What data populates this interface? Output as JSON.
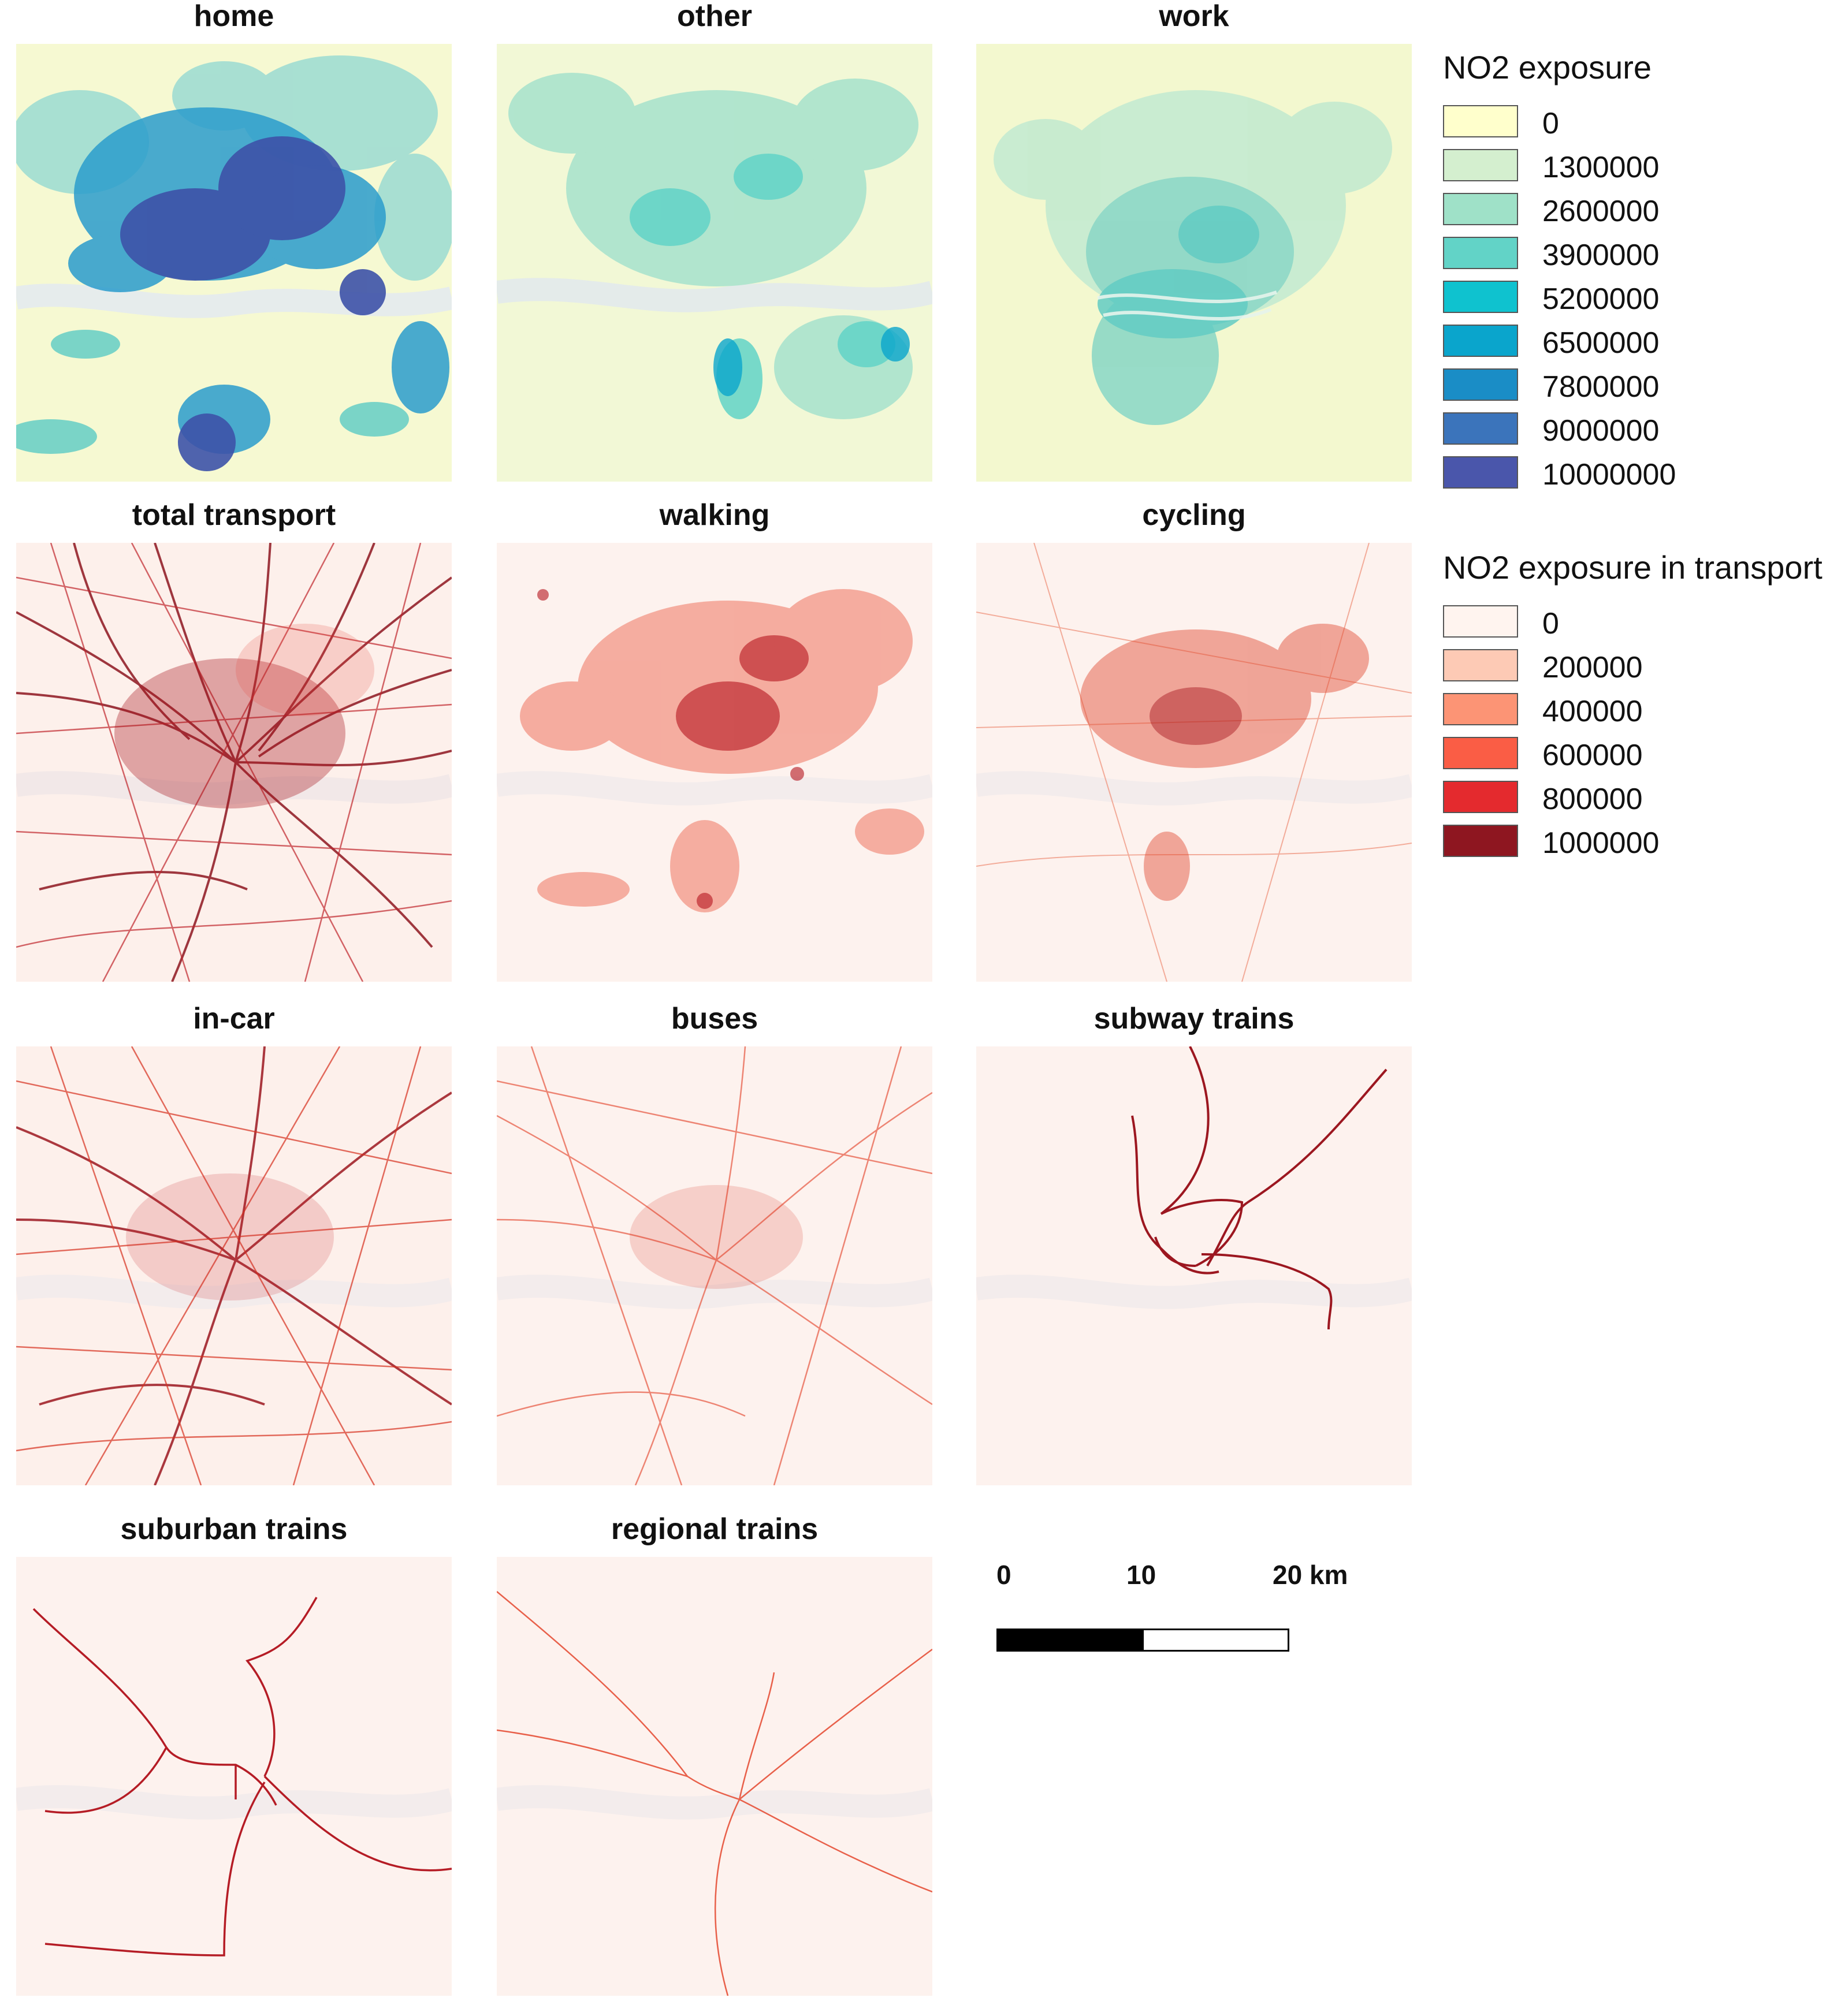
{
  "panels": {
    "home": {
      "title": "home"
    },
    "other": {
      "title": "other"
    },
    "work": {
      "title": "work"
    },
    "total_transport": {
      "title": "total transport"
    },
    "walking": {
      "title": "walking"
    },
    "cycling": {
      "title": "cycling"
    },
    "in_car": {
      "title": "in-car"
    },
    "buses": {
      "title": "buses"
    },
    "subway_trains": {
      "title": "subway trains"
    },
    "suburban_trains": {
      "title": "suburban trains"
    },
    "regional_trains": {
      "title": "regional trains"
    }
  },
  "legend_exposure": {
    "title": "NO2 exposure",
    "items": [
      {
        "label": "0",
        "color": "#ffffcc"
      },
      {
        "label": "1300000",
        "color": "#d4efcf"
      },
      {
        "label": "2600000",
        "color": "#9fe1c8"
      },
      {
        "label": "3900000",
        "color": "#62d3c7"
      },
      {
        "label": "5200000",
        "color": "#0fc2cf"
      },
      {
        "label": "6500000",
        "color": "#0aa5cc"
      },
      {
        "label": "7800000",
        "color": "#1a8dc6"
      },
      {
        "label": "9000000",
        "color": "#3b74bb"
      },
      {
        "label": "10000000",
        "color": "#4a56ab"
      }
    ]
  },
  "legend_transport": {
    "title": "NO2 exposure in transport",
    "items": [
      {
        "label": "0",
        "color": "#fff4ef"
      },
      {
        "label": "200000",
        "color": "#fdcab5"
      },
      {
        "label": "400000",
        "color": "#fc9475"
      },
      {
        "label": "600000",
        "color": "#fa5d45"
      },
      {
        "label": "800000",
        "color": "#e42a2e"
      },
      {
        "label": "1000000",
        "color": "#8e1620"
      }
    ]
  },
  "scale_bar": {
    "labels": [
      "0",
      "10",
      "20 km"
    ],
    "unit": "km"
  },
  "colors": {
    "map_bg_yellow": "#f6f9d2",
    "map_bg_pink": "#fdf0eb",
    "dark_blue": "#3d52a8",
    "mid_blue": "#1f8fc6",
    "teal": "#7ad6c4",
    "dark_red": "#8e1620",
    "red": "#d7301f",
    "light_red": "#f4a48a"
  }
}
